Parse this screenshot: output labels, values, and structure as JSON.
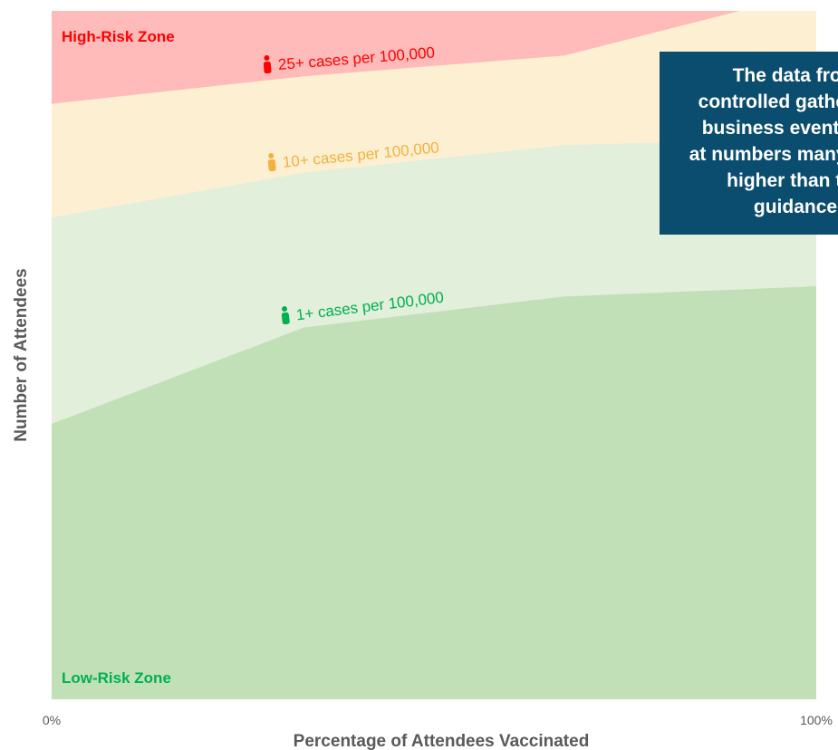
{
  "chart_data": {
    "type": "area",
    "xlabel": "Percentage of Attendees Vaccinated",
    "ylabel": "Number of Attendees",
    "x_ticks": [
      "0%",
      "100%"
    ],
    "xlim": [
      0,
      100
    ],
    "ylim": [
      0,
      100
    ],
    "grid": false,
    "zones": {
      "high": "High-Risk Zone",
      "low": "Low-Risk Zone"
    },
    "series": [
      {
        "name": "1+ cases per 100,000",
        "color": "#c1e0b8",
        "label_color": "#00b050",
        "icon": "person-icon",
        "x": [
          0,
          33,
          67,
          100
        ],
        "values": [
          40,
          54,
          58.5,
          60
        ]
      },
      {
        "name": "10+ cases per 100,000",
        "color": "#e2efda",
        "label_color": "#f4b03e",
        "icon": "person-icon",
        "x": [
          0,
          33,
          67,
          100
        ],
        "values": [
          70,
          76.5,
          80.5,
          81.5
        ]
      },
      {
        "name": "25+ cases per 100,000",
        "color": "#fdf0d2",
        "label_color": "#ff0000",
        "icon": "person-icon",
        "x": [
          0,
          33,
          67,
          90,
          100
        ],
        "values": [
          86.5,
          90.5,
          93.5,
          100,
          100
        ]
      }
    ],
    "top_zone_color": "#ffbaba",
    "high_zone_color": "#ff0000",
    "low_zone_color": "#00b050"
  },
  "callout": {
    "lines": [
      "The data from",
      "controlled gatherings",
      "business events and",
      "at numbers many times",
      "higher than the",
      "guidance"
    ],
    "background": "#0b4d6e"
  }
}
